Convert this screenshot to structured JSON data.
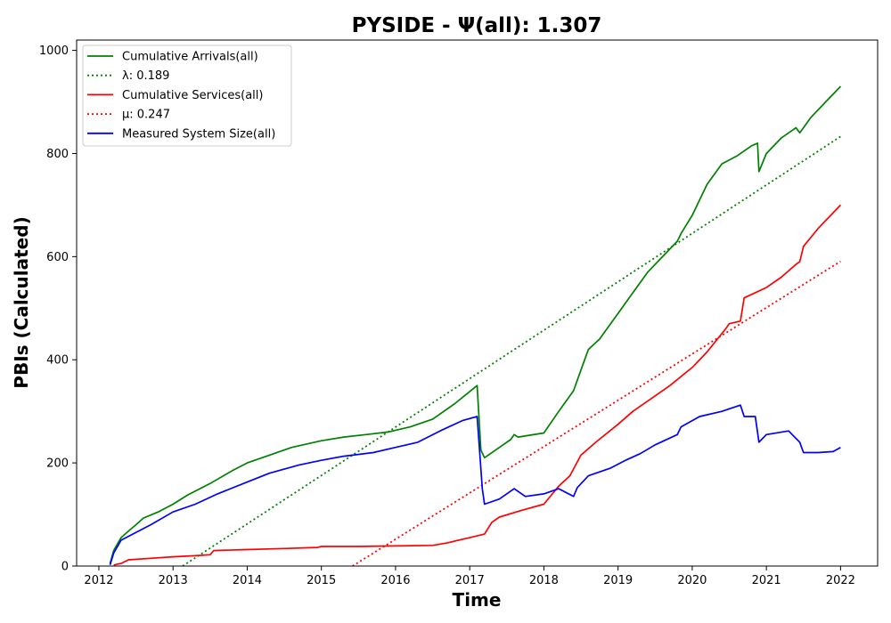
{
  "chart_data": {
    "type": "line",
    "title": "PYSIDE -  Ψ(all): 1.307",
    "xlabel": "Time",
    "ylabel": "PBIs (Calculated)",
    "xlim": [
      2011.7,
      2022.5
    ],
    "ylim": [
      0,
      1020
    ],
    "x_ticks": [
      "2012",
      "2013",
      "2014",
      "2015",
      "2016",
      "2017",
      "2018",
      "2019",
      "2020",
      "2021",
      "2022"
    ],
    "y_ticks": [
      "0",
      "200",
      "400",
      "600",
      "800",
      "1000"
    ],
    "grid": false,
    "legend_position": "top-left",
    "series": [
      {
        "name": "Cumulative Arrivals(all)",
        "color": "#008000",
        "style": "solid",
        "x": [
          2012.15,
          2012.2,
          2012.3,
          2012.4,
          2012.5,
          2012.6,
          2012.8,
          2013.0,
          2013.2,
          2013.5,
          2013.8,
          2014.0,
          2014.3,
          2014.6,
          2015.0,
          2015.3,
          2015.6,
          2015.9,
          2016.2,
          2016.5,
          2016.8,
          2017.1,
          2017.12,
          2017.15,
          2017.2,
          2017.4,
          2017.55,
          2017.6,
          2017.65,
          2018.0,
          2018.2,
          2018.4,
          2018.5,
          2018.6,
          2018.75,
          2018.9,
          2019.0,
          2019.2,
          2019.4,
          2019.6,
          2019.8,
          2019.85,
          2020.0,
          2020.2,
          2020.4,
          2020.6,
          2020.8,
          2020.88,
          2020.9,
          2021.0,
          2021.2,
          2021.4,
          2021.45,
          2021.5,
          2021.6,
          2021.8,
          2022.0
        ],
        "y": [
          5,
          30,
          55,
          68,
          80,
          93,
          105,
          120,
          138,
          160,
          185,
          200,
          215,
          230,
          243,
          250,
          255,
          260,
          270,
          285,
          315,
          350,
          300,
          225,
          210,
          230,
          245,
          255,
          250,
          258,
          300,
          340,
          380,
          420,
          440,
          470,
          490,
          530,
          570,
          600,
          630,
          645,
          680,
          740,
          780,
          795,
          815,
          820,
          765,
          800,
          830,
          850,
          840,
          850,
          870,
          900,
          930
        ]
      },
      {
        "name": "λ: 0.189",
        "color": "#008000",
        "style": "dotted",
        "x": [
          2013.13,
          2022.0
        ],
        "y": [
          0,
          833
        ]
      },
      {
        "name": "Cumulative Services(all)",
        "color": "#ff0000",
        "style": "solid",
        "x": [
          2012.2,
          2012.3,
          2012.4,
          2012.7,
          2013.0,
          2013.3,
          2013.5,
          2013.55,
          2014.0,
          2014.5,
          2014.95,
          2015.0,
          2015.5,
          2016.0,
          2016.5,
          2016.7,
          2017.0,
          2017.2,
          2017.3,
          2017.4,
          2017.7,
          2018.0,
          2018.2,
          2018.35,
          2018.5,
          2018.7,
          2019.0,
          2019.2,
          2019.5,
          2019.7,
          2020.0,
          2020.2,
          2020.45,
          2020.5,
          2020.65,
          2020.7,
          2021.0,
          2021.2,
          2021.4,
          2021.45,
          2021.5,
          2021.7,
          2022.0
        ],
        "y": [
          2,
          5,
          12,
          15,
          18,
          20,
          22,
          30,
          32,
          34,
          36,
          38,
          38,
          39,
          40,
          45,
          55,
          62,
          85,
          95,
          108,
          120,
          155,
          175,
          215,
          240,
          275,
          300,
          330,
          350,
          385,
          415,
          460,
          470,
          475,
          520,
          540,
          560,
          585,
          590,
          620,
          655,
          700
        ]
      },
      {
        "name": "μ: 0.247",
        "color": "#ff0000",
        "style": "dotted",
        "x": [
          2015.42,
          2022.0
        ],
        "y": [
          0,
          591
        ]
      },
      {
        "name": "Measured System Size(all)",
        "color": "#0000ff",
        "style": "solid",
        "x": [
          2012.15,
          2012.2,
          2012.3,
          2012.5,
          2012.7,
          2013.0,
          2013.3,
          2013.6,
          2014.0,
          2014.3,
          2014.7,
          2015.0,
          2015.3,
          2015.7,
          2016.0,
          2016.3,
          2016.6,
          2016.9,
          2017.1,
          2017.13,
          2017.17,
          2017.2,
          2017.4,
          2017.6,
          2017.75,
          2018.0,
          2018.2,
          2018.4,
          2018.45,
          2018.6,
          2018.9,
          2019.1,
          2019.3,
          2019.5,
          2019.8,
          2019.85,
          2020.1,
          2020.4,
          2020.65,
          2020.7,
          2020.85,
          2020.9,
          2021.0,
          2021.3,
          2021.45,
          2021.5,
          2021.7,
          2021.9,
          2022.0
        ],
        "y": [
          2,
          25,
          50,
          65,
          80,
          105,
          120,
          140,
          163,
          180,
          196,
          205,
          213,
          220,
          230,
          240,
          262,
          282,
          290,
          230,
          150,
          120,
          130,
          150,
          135,
          140,
          150,
          135,
          152,
          175,
          190,
          205,
          218,
          235,
          255,
          270,
          290,
          300,
          312,
          290,
          290,
          240,
          255,
          262,
          240,
          220,
          220,
          222,
          230
        ]
      }
    ]
  },
  "legend": {
    "items": [
      {
        "label": "Cumulative Arrivals(all)",
        "color": "#008000",
        "style": "solid"
      },
      {
        "label": "λ: 0.189",
        "color": "#008000",
        "style": "dotted"
      },
      {
        "label": "Cumulative Services(all)",
        "color": "#ff0000",
        "style": "solid"
      },
      {
        "label": "μ: 0.247",
        "color": "#ff0000",
        "style": "dotted"
      },
      {
        "label": "Measured System Size(all)",
        "color": "#0000ff",
        "style": "solid"
      }
    ]
  }
}
